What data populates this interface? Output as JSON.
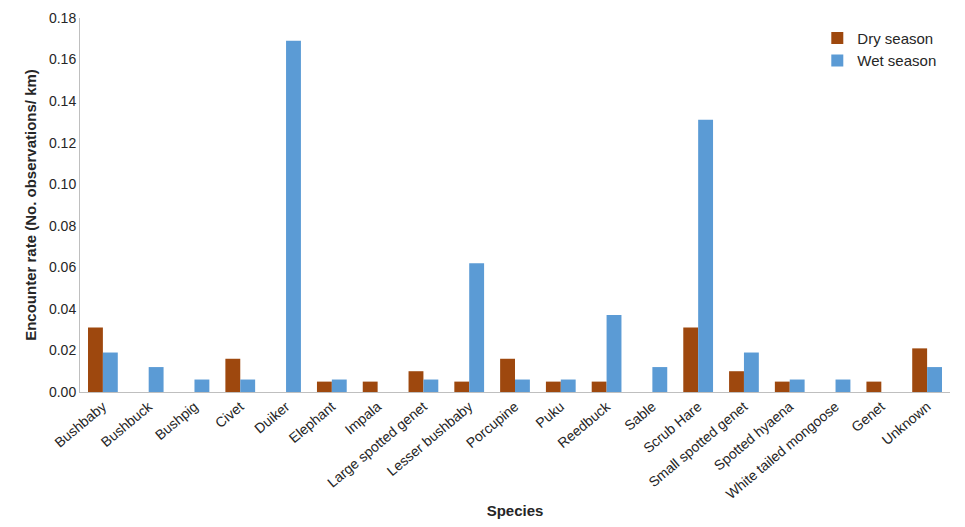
{
  "chart_data": {
    "type": "bar",
    "x_label": "Species",
    "y_label": "Encounter rate (No. observations/ km)",
    "categories": [
      "Bushbaby",
      "Bushbuck",
      "Bushpig",
      "Civet",
      "Duiker",
      "Elephant",
      "Impala",
      "Large spotted genet",
      "Lesser bushbaby",
      "Porcupine",
      "Puku",
      "Reedbuck",
      "Sable",
      "Scrub Hare",
      "Small spotted genet",
      "Spotted hyaena",
      "White tailed mongoose",
      "Genet",
      "Unknown"
    ],
    "series": [
      {
        "name": "Dry season",
        "color": "#9e480e",
        "values": [
          0.031,
          0,
          0,
          0.016,
          0,
          0.005,
          0.005,
          0.01,
          0.005,
          0.016,
          0.005,
          0.005,
          0,
          0.031,
          0.01,
          0.005,
          0,
          0.005,
          0.021
        ]
      },
      {
        "name": "Wet season",
        "color": "#5b9bd5",
        "values": [
          0.019,
          0.012,
          0.006,
          0.006,
          0.169,
          0.006,
          0,
          0.006,
          0.062,
          0.006,
          0.006,
          0.037,
          0.012,
          0.131,
          0.019,
          0.006,
          0.006,
          0,
          0.012
        ]
      }
    ],
    "ylim": [
      0,
      0.18
    ],
    "yticks": [
      {
        "value": 0,
        "label": "0.00"
      },
      {
        "value": 0.02,
        "label": "0.02"
      },
      {
        "value": 0.04,
        "label": "0.04"
      },
      {
        "value": 0.06,
        "label": "0.06"
      },
      {
        "value": 0.08,
        "label": "0.08"
      },
      {
        "value": 0.1,
        "label": "0.10"
      },
      {
        "value": 0.12,
        "label": "0.12"
      },
      {
        "value": 0.14,
        "label": "0.14"
      },
      {
        "value": 0.16,
        "label": "0.16"
      },
      {
        "value": 0.18,
        "label": "0.18"
      }
    ],
    "grid": false,
    "legend": "top right"
  }
}
